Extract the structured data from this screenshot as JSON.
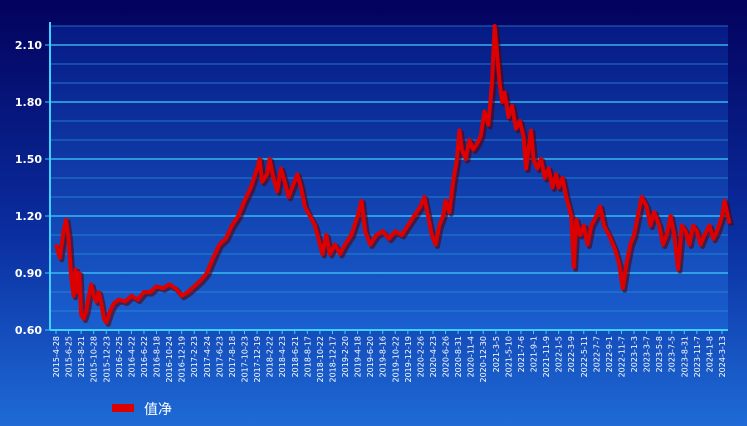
{
  "chart_data": {
    "type": "line",
    "title": "",
    "xlabel": "",
    "ylabel": "",
    "ylim": [
      0.6,
      2.2
    ],
    "y_ticks": [
      0.6,
      0.9,
      1.2,
      1.5,
      1.8,
      2.1
    ],
    "y_tick_labels": [
      "0.60",
      "0.90",
      "1.20",
      "1.50",
      "1.80",
      "2.10"
    ],
    "x_tick_labels": [
      "2015-4-28",
      "2015-6-25",
      "2015-8-21",
      "2015-10-28",
      "2015-12-23",
      "2016-2-25",
      "2016-4-22",
      "2016-6-22",
      "2016-8-18",
      "2016-10-24",
      "2016-12-19",
      "2017-2-23",
      "2017-4-24",
      "2017-6-23",
      "2017-8-18",
      "2017-10-23",
      "2017-12-19",
      "2018-2-22",
      "2018-4-23",
      "2018-6-21",
      "2018-8-17",
      "2018-10-22",
      "2018-12-17",
      "2019-2-20",
      "2019-4-18",
      "2019-6-20",
      "2019-8-16",
      "2019-10-22",
      "2019-12-19",
      "2020-2-26",
      "2020-4-23",
      "2020-6-26",
      "2020-8-31",
      "2020-11-4",
      "2020-12-30",
      "2021-3-5",
      "2021-5-10",
      "2021-7-6",
      "2021-9-1",
      "2021-11-9",
      "2022-1-5",
      "2022-3-9",
      "2022-5-11",
      "2022-7-7",
      "2022-9-1",
      "2022-11-7",
      "2023-1-3",
      "2023-3-7",
      "2023-5-8",
      "2023-7-5",
      "2023-8-31",
      "2023-11-7",
      "2024-1-8",
      "2024-3-13"
    ],
    "grid": true,
    "legend_position": "bottom-left",
    "series": [
      {
        "name": "值净",
        "color": "#dd0000",
        "values": [
          [
            0.0,
            1.05
          ],
          [
            0.3,
            0.98
          ],
          [
            0.6,
            1.12
          ],
          [
            0.8,
            1.18
          ],
          [
            1.0,
            1.08
          ],
          [
            1.2,
            0.88
          ],
          [
            1.4,
            0.78
          ],
          [
            1.55,
            0.92
          ],
          [
            1.7,
            0.8
          ],
          [
            1.85,
            0.9
          ],
          [
            2.0,
            0.68
          ],
          [
            2.2,
            0.66
          ],
          [
            2.4,
            0.7
          ],
          [
            2.6,
            0.78
          ],
          [
            2.8,
            0.84
          ],
          [
            3.0,
            0.78
          ],
          [
            3.2,
            0.75
          ],
          [
            3.4,
            0.8
          ],
          [
            3.6,
            0.74
          ],
          [
            3.8,
            0.66
          ],
          [
            4.0,
            0.64
          ],
          [
            4.3,
            0.7
          ],
          [
            4.6,
            0.74
          ],
          [
            5.0,
            0.76
          ],
          [
            5.5,
            0.75
          ],
          [
            6.0,
            0.78
          ],
          [
            6.5,
            0.76
          ],
          [
            7.0,
            0.8
          ],
          [
            7.5,
            0.8
          ],
          [
            8.0,
            0.83
          ],
          [
            8.5,
            0.82
          ],
          [
            9.0,
            0.84
          ],
          [
            9.5,
            0.82
          ],
          [
            10.0,
            0.78
          ],
          [
            10.5,
            0.8
          ],
          [
            11.0,
            0.83
          ],
          [
            11.5,
            0.86
          ],
          [
            12.0,
            0.9
          ],
          [
            12.5,
            0.98
          ],
          [
            13.0,
            1.05
          ],
          [
            13.5,
            1.08
          ],
          [
            14.0,
            1.15
          ],
          [
            14.5,
            1.2
          ],
          [
            15.0,
            1.28
          ],
          [
            15.5,
            1.35
          ],
          [
            16.0,
            1.45
          ],
          [
            16.2,
            1.5
          ],
          [
            16.4,
            1.38
          ],
          [
            16.8,
            1.42
          ],
          [
            17.0,
            1.5
          ],
          [
            17.3,
            1.4
          ],
          [
            17.6,
            1.33
          ],
          [
            17.9,
            1.45
          ],
          [
            18.2,
            1.38
          ],
          [
            18.5,
            1.3
          ],
          [
            18.8,
            1.35
          ],
          [
            19.2,
            1.42
          ],
          [
            19.5,
            1.35
          ],
          [
            19.8,
            1.25
          ],
          [
            20.2,
            1.2
          ],
          [
            20.6,
            1.15
          ],
          [
            21.0,
            1.05
          ],
          [
            21.2,
            1.0
          ],
          [
            21.5,
            1.1
          ],
          [
            21.8,
            1.0
          ],
          [
            22.2,
            1.05
          ],
          [
            22.6,
            1.0
          ],
          [
            23.0,
            1.05
          ],
          [
            23.5,
            1.1
          ],
          [
            24.0,
            1.2
          ],
          [
            24.3,
            1.28
          ],
          [
            24.6,
            1.12
          ],
          [
            25.0,
            1.05
          ],
          [
            25.5,
            1.1
          ],
          [
            26.0,
            1.12
          ],
          [
            26.5,
            1.08
          ],
          [
            27.0,
            1.12
          ],
          [
            27.5,
            1.1
          ],
          [
            28.0,
            1.15
          ],
          [
            28.5,
            1.2
          ],
          [
            29.0,
            1.25
          ],
          [
            29.3,
            1.3
          ],
          [
            29.6,
            1.2
          ],
          [
            29.9,
            1.1
          ],
          [
            30.2,
            1.05
          ],
          [
            30.5,
            1.15
          ],
          [
            30.8,
            1.2
          ],
          [
            31.0,
            1.28
          ],
          [
            31.3,
            1.22
          ],
          [
            31.6,
            1.38
          ],
          [
            31.9,
            1.5
          ],
          [
            32.1,
            1.65
          ],
          [
            32.3,
            1.55
          ],
          [
            32.6,
            1.5
          ],
          [
            32.9,
            1.6
          ],
          [
            33.2,
            1.55
          ],
          [
            33.5,
            1.58
          ],
          [
            33.8,
            1.62
          ],
          [
            34.1,
            1.75
          ],
          [
            34.4,
            1.68
          ],
          [
            34.7,
            1.9
          ],
          [
            34.9,
            2.2
          ],
          [
            35.1,
            2.05
          ],
          [
            35.3,
            1.9
          ],
          [
            35.5,
            1.8
          ],
          [
            35.7,
            1.85
          ],
          [
            36.0,
            1.72
          ],
          [
            36.3,
            1.78
          ],
          [
            36.6,
            1.66
          ],
          [
            36.9,
            1.7
          ],
          [
            37.2,
            1.62
          ],
          [
            37.4,
            1.45
          ],
          [
            37.6,
            1.55
          ],
          [
            37.8,
            1.65
          ],
          [
            38.0,
            1.5
          ],
          [
            38.3,
            1.45
          ],
          [
            38.6,
            1.5
          ],
          [
            38.9,
            1.4
          ],
          [
            39.2,
            1.45
          ],
          [
            39.5,
            1.35
          ],
          [
            39.8,
            1.42
          ],
          [
            40.0,
            1.35
          ],
          [
            40.3,
            1.4
          ],
          [
            40.6,
            1.3
          ],
          [
            41.0,
            1.2
          ],
          [
            41.2,
            0.93
          ],
          [
            41.4,
            1.18
          ],
          [
            41.7,
            1.1
          ],
          [
            42.0,
            1.15
          ],
          [
            42.3,
            1.05
          ],
          [
            42.6,
            1.15
          ],
          [
            43.0,
            1.2
          ],
          [
            43.3,
            1.25
          ],
          [
            43.6,
            1.15
          ],
          [
            44.0,
            1.1
          ],
          [
            44.5,
            1.02
          ],
          [
            44.8,
            0.95
          ],
          [
            45.1,
            0.82
          ],
          [
            45.4,
            0.95
          ],
          [
            45.7,
            1.05
          ],
          [
            46.0,
            1.1
          ],
          [
            46.3,
            1.2
          ],
          [
            46.6,
            1.3
          ],
          [
            47.0,
            1.25
          ],
          [
            47.3,
            1.15
          ],
          [
            47.6,
            1.22
          ],
          [
            48.0,
            1.15
          ],
          [
            48.3,
            1.05
          ],
          [
            48.6,
            1.1
          ],
          [
            48.9,
            1.2
          ],
          [
            49.2,
            1.1
          ],
          [
            49.5,
            0.92
          ],
          [
            49.8,
            1.15
          ],
          [
            50.1,
            1.12
          ],
          [
            50.4,
            1.05
          ],
          [
            50.7,
            1.15
          ],
          [
            51.0,
            1.12
          ],
          [
            51.3,
            1.05
          ],
          [
            51.6,
            1.1
          ],
          [
            52.0,
            1.15
          ],
          [
            52.3,
            1.08
          ],
          [
            52.6,
            1.12
          ],
          [
            53.0,
            1.2
          ],
          [
            53.2,
            1.28
          ],
          [
            53.4,
            1.22
          ],
          [
            53.6,
            1.16
          ]
        ]
      }
    ]
  }
}
